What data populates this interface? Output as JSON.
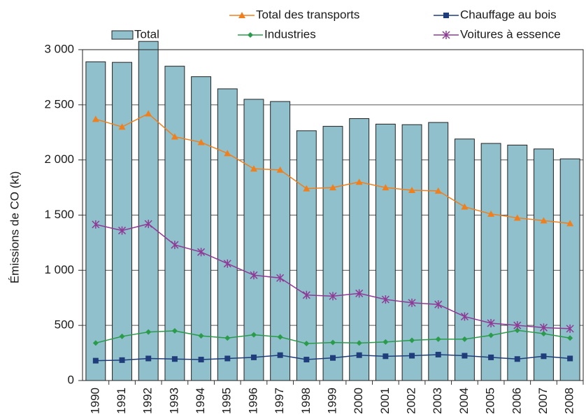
{
  "chart_data": {
    "type": "bar",
    "y_label": "Émissions de CO (kt)",
    "categories": [
      "1990",
      "1991",
      "1992",
      "1993",
      "1994",
      "1995",
      "1996",
      "1997",
      "1998",
      "1999",
      "2000",
      "2001",
      "2002",
      "2003",
      "2004",
      "2005",
      "2006",
      "2007",
      "2008"
    ],
    "series": [
      {
        "name": "Total",
        "type": "bar",
        "color": "#8fc0cb",
        "values": [
          2890,
          2885,
          3075,
          2850,
          2755,
          2645,
          2550,
          2530,
          2265,
          2305,
          2375,
          2325,
          2320,
          2340,
          2190,
          2150,
          2135,
          2100,
          2010
        ]
      },
      {
        "name": "Total des transports",
        "type": "line",
        "marker": "triangle",
        "color": "#f07f1e",
        "values": [
          2370,
          2300,
          2420,
          2210,
          2160,
          2060,
          1920,
          1910,
          1740,
          1750,
          1800,
          1750,
          1725,
          1720,
          1575,
          1510,
          1475,
          1450,
          1425
        ]
      },
      {
        "name": "Chauffage au bois",
        "type": "line",
        "marker": "square",
        "color": "#1f3d7a",
        "values": [
          180,
          185,
          200,
          195,
          190,
          200,
          210,
          230,
          190,
          205,
          230,
          220,
          225,
          235,
          225,
          210,
          195,
          220,
          200
        ]
      },
      {
        "name": "Industries",
        "type": "line",
        "marker": "diamond",
        "color": "#2a9b4a",
        "values": [
          340,
          400,
          440,
          450,
          405,
          385,
          415,
          395,
          335,
          345,
          340,
          350,
          365,
          375,
          375,
          410,
          455,
          425,
          385
        ]
      },
      {
        "name": "Voitures à essence",
        "type": "line",
        "marker": "star",
        "color": "#8e3a96",
        "values": [
          1415,
          1360,
          1420,
          1230,
          1165,
          1060,
          955,
          930,
          775,
          765,
          790,
          735,
          705,
          690,
          580,
          520,
          500,
          480,
          470
        ]
      }
    ],
    "ylim": [
      0,
      3000
    ],
    "yticks": [
      0,
      500,
      {
        "value": 1000,
        "label": "1 000"
      },
      {
        "value": 1500,
        "label": "1 500"
      },
      {
        "value": 2000,
        "label": "2 000"
      },
      {
        "value": 2500,
        "label": "2 500"
      },
      {
        "value": 3000,
        "label": "3 000"
      }
    ],
    "grid": true
  }
}
